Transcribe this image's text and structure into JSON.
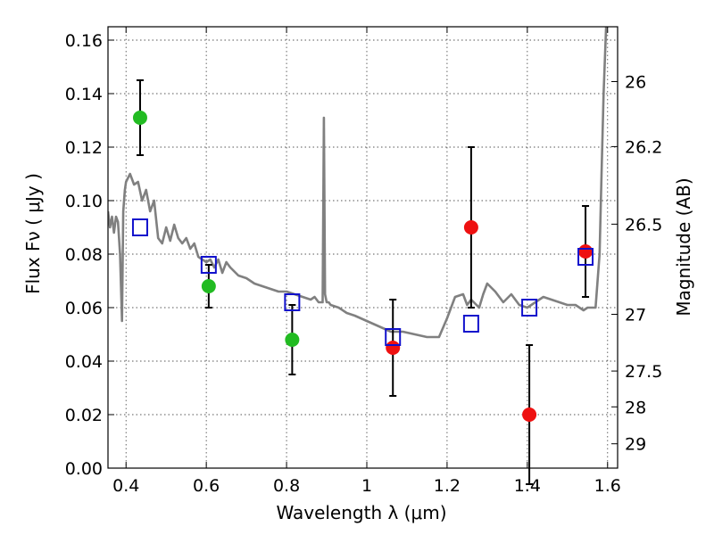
{
  "chart_data": {
    "type": "scatter",
    "xlabel": "Wavelength  λ (μm)",
    "ylabel": "Flux  Fν  ( μJy )",
    "y2label": "Magnitude (AB)",
    "xlim": [
      0.355,
      1.625
    ],
    "ylim": [
      0.0,
      0.165
    ],
    "grid": true,
    "xticks": [
      0.4,
      0.6,
      0.8,
      1.0,
      1.2,
      1.4,
      1.6
    ],
    "xtick_labels": [
      "0.4",
      "0.6",
      "0.8",
      "1",
      "1.2",
      "1.4",
      "1.6"
    ],
    "yticks": [
      0.0,
      0.02,
      0.04,
      0.06,
      0.08,
      0.1,
      0.12,
      0.14,
      0.16
    ],
    "ytick_labels": [
      "0.00",
      "0.02",
      "0.04",
      "0.06",
      "0.08",
      "0.10",
      "0.12",
      "0.14",
      "0.16"
    ],
    "y2ticks": [
      {
        "label": "26",
        "flux": 0.1445
      },
      {
        "label": "26.2",
        "flux": 0.1202
      },
      {
        "label": "26.5",
        "flux": 0.0912
      },
      {
        "label": "27",
        "flux": 0.0575
      },
      {
        "label": "27.5",
        "flux": 0.0363
      },
      {
        "label": "28",
        "flux": 0.0229
      },
      {
        "label": "29",
        "flux": 0.0091
      }
    ],
    "colors": {
      "green": "#22bb22",
      "red": "#ee1111",
      "blue": "#1111cc",
      "spectrum": "#808080",
      "errorbar": "#000000"
    },
    "series": [
      {
        "marker": "circle",
        "color": "green",
        "points": [
          {
            "x": 0.435,
            "y": 0.131,
            "err": 0.014
          },
          {
            "x": 0.606,
            "y": 0.068,
            "err": 0.008
          },
          {
            "x": 0.814,
            "y": 0.048,
            "err": 0.013
          }
        ]
      },
      {
        "marker": "circle",
        "color": "red",
        "points": [
          {
            "x": 1.065,
            "y": 0.045,
            "err": 0.018
          },
          {
            "x": 1.26,
            "y": 0.09,
            "err": 0.03
          },
          {
            "x": 1.405,
            "y": 0.02,
            "err": 0.026
          },
          {
            "x": 1.545,
            "y": 0.081,
            "err": 0.017
          }
        ]
      },
      {
        "marker": "open-square",
        "color": "blue",
        "points": [
          {
            "x": 0.435,
            "y": 0.09
          },
          {
            "x": 0.606,
            "y": 0.076
          },
          {
            "x": 0.814,
            "y": 0.062
          },
          {
            "x": 1.065,
            "y": 0.049
          },
          {
            "x": 1.26,
            "y": 0.054
          },
          {
            "x": 1.405,
            "y": 0.06
          },
          {
            "x": 1.545,
            "y": 0.079
          }
        ]
      },
      {
        "marker": "line",
        "color": "spectrum",
        "x": [
          0.355,
          0.36,
          0.365,
          0.37,
          0.375,
          0.38,
          0.385,
          0.39,
          0.393,
          0.397,
          0.4,
          0.41,
          0.42,
          0.43,
          0.44,
          0.45,
          0.46,
          0.47,
          0.48,
          0.49,
          0.5,
          0.51,
          0.52,
          0.53,
          0.54,
          0.55,
          0.56,
          0.57,
          0.58,
          0.59,
          0.6,
          0.61,
          0.62,
          0.63,
          0.64,
          0.65,
          0.66,
          0.68,
          0.7,
          0.72,
          0.74,
          0.76,
          0.78,
          0.8,
          0.82,
          0.84,
          0.86,
          0.87,
          0.88,
          0.89,
          0.893,
          0.896,
          0.9,
          0.905,
          0.91,
          0.93,
          0.95,
          0.97,
          1.0,
          1.03,
          1.06,
          1.09,
          1.12,
          1.15,
          1.18,
          1.2,
          1.22,
          1.24,
          1.25,
          1.26,
          1.28,
          1.29,
          1.3,
          1.32,
          1.34,
          1.36,
          1.38,
          1.4,
          1.42,
          1.44,
          1.46,
          1.48,
          1.5,
          1.52,
          1.54,
          1.55,
          1.57,
          1.58,
          1.585,
          1.59,
          1.6
        ],
        "y": [
          0.096,
          0.09,
          0.094,
          0.088,
          0.094,
          0.092,
          0.08,
          0.055,
          0.096,
          0.104,
          0.107,
          0.11,
          0.106,
          0.107,
          0.1,
          0.104,
          0.096,
          0.1,
          0.086,
          0.084,
          0.09,
          0.085,
          0.091,
          0.086,
          0.084,
          0.086,
          0.082,
          0.084,
          0.079,
          0.078,
          0.077,
          0.078,
          0.075,
          0.078,
          0.073,
          0.077,
          0.075,
          0.072,
          0.071,
          0.069,
          0.068,
          0.067,
          0.066,
          0.066,
          0.065,
          0.064,
          0.063,
          0.064,
          0.062,
          0.062,
          0.131,
          0.065,
          0.062,
          0.062,
          0.061,
          0.06,
          0.058,
          0.057,
          0.055,
          0.053,
          0.051,
          0.051,
          0.05,
          0.049,
          0.049,
          0.056,
          0.064,
          0.065,
          0.061,
          0.063,
          0.06,
          0.065,
          0.069,
          0.066,
          0.062,
          0.065,
          0.061,
          0.06,
          0.062,
          0.064,
          0.063,
          0.062,
          0.061,
          0.061,
          0.059,
          0.06,
          0.06,
          0.08,
          0.11,
          0.14,
          0.18
        ]
      }
    ]
  }
}
